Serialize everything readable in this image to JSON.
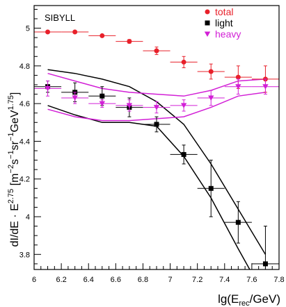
{
  "chart_data": {
    "type": "scatter",
    "title": "",
    "annotation": "SIBYLL",
    "xlabel": {
      "base": "lg(E",
      "sub": "rec",
      "suffix": "/GeV)"
    },
    "ylabel": {
      "p1": "dI/dE · E",
      "sup1": "2.75",
      "p2": " [m",
      "sup2": "−2",
      "p3": "s",
      "sup3": "−1",
      "p4": "sr",
      "sup4": "−1",
      "p5": "GeV",
      "sup5": "1.75",
      "p6": "]"
    },
    "xlim": [
      6.0,
      7.8
    ],
    "ylim": [
      3.72,
      5.12
    ],
    "xticks": [
      6,
      6.2,
      6.4,
      6.6,
      6.8,
      7,
      7.2,
      7.4,
      7.6,
      7.8
    ],
    "xtick_labels": [
      "6",
      "6.2",
      "6.4",
      "6.6",
      "6.8",
      "7",
      "7.2",
      "7.4",
      "7.6",
      "7.8"
    ],
    "yticks": [
      3.8,
      4,
      4.2,
      4.4,
      4.6,
      4.8,
      5
    ],
    "ytick_labels": [
      "3.8",
      "4",
      "4.2",
      "4.4",
      "4.6",
      "4.8",
      "5"
    ],
    "legend": {
      "position": "top-right",
      "entries": [
        {
          "label": "total",
          "marker": "circle",
          "color": "#e8202a"
        },
        {
          "label": "light",
          "marker": "square",
          "color": "#000000"
        },
        {
          "label": "heavy",
          "marker": "triangle-down",
          "color": "#d21fd6"
        }
      ]
    },
    "series": [
      {
        "name": "total",
        "marker": "circle",
        "color": "#e8202a",
        "points": [
          {
            "x": 6.1,
            "y": 4.98,
            "xerr": 0.1,
            "yerr": 0.005
          },
          {
            "x": 6.3,
            "y": 4.98,
            "xerr": 0.1,
            "yerr": 0.005
          },
          {
            "x": 6.5,
            "y": 4.96,
            "xerr": 0.1,
            "yerr": 0.005
          },
          {
            "x": 6.7,
            "y": 4.93,
            "xerr": 0.1,
            "yerr": 0.01
          },
          {
            "x": 6.9,
            "y": 4.88,
            "xerr": 0.1,
            "yerr": 0.02
          },
          {
            "x": 7.1,
            "y": 4.82,
            "xerr": 0.1,
            "yerr": 0.03
          },
          {
            "x": 7.3,
            "y": 4.77,
            "xerr": 0.1,
            "yerr": 0.04
          },
          {
            "x": 7.5,
            "y": 4.74,
            "xerr": 0.1,
            "yerr": 0.06
          },
          {
            "x": 7.7,
            "y": 4.73,
            "xerr": 0.1,
            "yerr": 0.07
          }
        ]
      },
      {
        "name": "light",
        "marker": "square",
        "color": "#000000",
        "points": [
          {
            "x": 6.1,
            "y": 4.69,
            "xerr": 0.1,
            "yerr": 0.03
          },
          {
            "x": 6.3,
            "y": 4.66,
            "xerr": 0.1,
            "yerr": 0.05
          },
          {
            "x": 6.5,
            "y": 4.64,
            "xerr": 0.1,
            "yerr": 0.05
          },
          {
            "x": 6.7,
            "y": 4.58,
            "xerr": 0.1,
            "yerr": 0.05
          },
          {
            "x": 6.9,
            "y": 4.49,
            "xerr": 0.1,
            "yerr": 0.04
          },
          {
            "x": 7.1,
            "y": 4.33,
            "xerr": 0.1,
            "yerr": 0.05
          },
          {
            "x": 7.3,
            "y": 4.15,
            "xerr": 0.1,
            "yerr": 0.15
          },
          {
            "x": 7.5,
            "y": 3.97,
            "xerr": 0.1,
            "yerr": 0.11
          },
          {
            "x": 7.7,
            "y": 3.75,
            "xerr": 0.1,
            "yerr": 0.2
          }
        ]
      },
      {
        "name": "heavy",
        "marker": "triangle-down",
        "color": "#d21fd6",
        "points": [
          {
            "x": 6.1,
            "y": 4.68,
            "xerr": 0.1,
            "yerr": 0.04
          },
          {
            "x": 6.3,
            "y": 4.63,
            "xerr": 0.1,
            "yerr": 0.03
          },
          {
            "x": 6.5,
            "y": 4.6,
            "xerr": 0.1,
            "yerr": 0.02
          },
          {
            "x": 6.7,
            "y": 4.59,
            "xerr": 0.1,
            "yerr": 0.03
          },
          {
            "x": 6.9,
            "y": 4.58,
            "xerr": 0.1,
            "yerr": 0.03
          },
          {
            "x": 7.1,
            "y": 4.59,
            "xerr": 0.1,
            "yerr": 0.03
          },
          {
            "x": 7.3,
            "y": 4.63,
            "xerr": 0.1,
            "yerr": 0.04
          },
          {
            "x": 7.5,
            "y": 4.69,
            "xerr": 0.1,
            "yerr": 0.04
          },
          {
            "x": 7.7,
            "y": 4.69,
            "xerr": 0.1,
            "yerr": 0.04
          }
        ]
      }
    ],
    "bands": [
      {
        "name": "light-band-upper",
        "color": "#000000",
        "points": [
          [
            6.1,
            4.78
          ],
          [
            6.3,
            4.76
          ],
          [
            6.5,
            4.73
          ],
          [
            6.7,
            4.69
          ],
          [
            6.9,
            4.61
          ],
          [
            7.1,
            4.49
          ],
          [
            7.3,
            4.28
          ],
          [
            7.5,
            4.04
          ],
          [
            7.7,
            3.8
          ]
        ]
      },
      {
        "name": "light-band-lower",
        "color": "#000000",
        "points": [
          [
            6.1,
            4.59
          ],
          [
            6.3,
            4.54
          ],
          [
            6.5,
            4.5
          ],
          [
            6.7,
            4.5
          ],
          [
            6.9,
            4.48
          ],
          [
            7.1,
            4.32
          ],
          [
            7.3,
            4.1
          ],
          [
            7.5,
            3.83
          ],
          [
            7.6,
            3.7
          ]
        ]
      },
      {
        "name": "heavy-band-upper",
        "color": "#d21fd6",
        "points": [
          [
            6.1,
            4.76
          ],
          [
            6.3,
            4.72
          ],
          [
            6.5,
            4.68
          ],
          [
            6.7,
            4.66
          ],
          [
            6.9,
            4.65
          ],
          [
            7.1,
            4.64
          ],
          [
            7.3,
            4.67
          ],
          [
            7.5,
            4.72
          ],
          [
            7.7,
            4.73
          ]
        ]
      },
      {
        "name": "heavy-band-lower",
        "color": "#d21fd6",
        "points": [
          [
            6.1,
            4.57
          ],
          [
            6.3,
            4.53
          ],
          [
            6.5,
            4.51
          ],
          [
            6.7,
            4.51
          ],
          [
            6.9,
            4.52
          ],
          [
            7.1,
            4.53
          ],
          [
            7.3,
            4.58
          ],
          [
            7.5,
            4.64
          ],
          [
            7.7,
            4.66
          ]
        ]
      }
    ]
  }
}
